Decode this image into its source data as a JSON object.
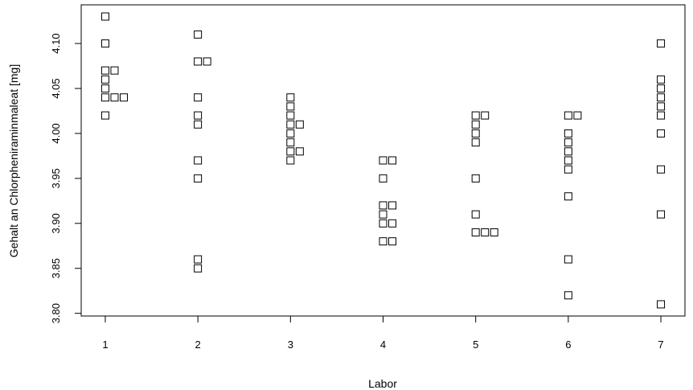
{
  "chart_data": {
    "type": "scatter",
    "title": "",
    "xlabel": "Labor",
    "ylabel": "Gehalt an Chlorpheniraminmaleat [mg]",
    "x_ticks": [
      1,
      2,
      3,
      4,
      5,
      6,
      7
    ],
    "y_ticks": [
      "3.80",
      "3.85",
      "3.90",
      "3.95",
      "4.00",
      "4.05",
      "4.10"
    ],
    "xlim": [
      0.74,
      7.26
    ],
    "ylim": [
      3.797,
      4.143
    ],
    "marker": "open-square",
    "grid": false,
    "legend": "none",
    "series": [
      {
        "points": [
          {
            "x": 1,
            "y": 4.13
          },
          {
            "x": 1,
            "y": 4.1
          },
          {
            "x": 1,
            "y": 4.07
          },
          {
            "x": 1.1,
            "y": 4.07
          },
          {
            "x": 1,
            "y": 4.06
          },
          {
            "x": 1,
            "y": 4.05
          },
          {
            "x": 1,
            "y": 4.04
          },
          {
            "x": 1.1,
            "y": 4.04
          },
          {
            "x": 1.2,
            "y": 4.04
          },
          {
            "x": 1,
            "y": 4.02
          },
          {
            "x": 2,
            "y": 4.11
          },
          {
            "x": 2,
            "y": 4.08
          },
          {
            "x": 2.1,
            "y": 4.08
          },
          {
            "x": 2,
            "y": 4.04
          },
          {
            "x": 2,
            "y": 4.02
          },
          {
            "x": 2,
            "y": 4.01
          },
          {
            "x": 2,
            "y": 3.97
          },
          {
            "x": 2,
            "y": 3.95
          },
          {
            "x": 2,
            "y": 3.86
          },
          {
            "x": 2,
            "y": 3.85
          },
          {
            "x": 3,
            "y": 4.04
          },
          {
            "x": 3,
            "y": 4.03
          },
          {
            "x": 3,
            "y": 4.02
          },
          {
            "x": 3,
            "y": 4.01
          },
          {
            "x": 3.1,
            "y": 4.01
          },
          {
            "x": 3,
            "y": 4.0
          },
          {
            "x": 3,
            "y": 3.99
          },
          {
            "x": 3,
            "y": 3.98
          },
          {
            "x": 3.1,
            "y": 3.98
          },
          {
            "x": 3,
            "y": 3.97
          },
          {
            "x": 4,
            "y": 3.97
          },
          {
            "x": 4.1,
            "y": 3.97
          },
          {
            "x": 4,
            "y": 3.95
          },
          {
            "x": 4,
            "y": 3.92
          },
          {
            "x": 4.1,
            "y": 3.92
          },
          {
            "x": 4,
            "y": 3.91
          },
          {
            "x": 4,
            "y": 3.9
          },
          {
            "x": 4.1,
            "y": 3.9
          },
          {
            "x": 4,
            "y": 3.88
          },
          {
            "x": 4.1,
            "y": 3.88
          },
          {
            "x": 5,
            "y": 4.02
          },
          {
            "x": 5.1,
            "y": 4.02
          },
          {
            "x": 5,
            "y": 4.01
          },
          {
            "x": 5,
            "y": 4.0
          },
          {
            "x": 5,
            "y": 3.99
          },
          {
            "x": 5,
            "y": 3.95
          },
          {
            "x": 5,
            "y": 3.91
          },
          {
            "x": 5,
            "y": 3.89
          },
          {
            "x": 5.1,
            "y": 3.89
          },
          {
            "x": 5.2,
            "y": 3.89
          },
          {
            "x": 6,
            "y": 4.02
          },
          {
            "x": 6.1,
            "y": 4.02
          },
          {
            "x": 6,
            "y": 4.0
          },
          {
            "x": 6,
            "y": 3.99
          },
          {
            "x": 6,
            "y": 3.98
          },
          {
            "x": 6,
            "y": 3.97
          },
          {
            "x": 6,
            "y": 3.96
          },
          {
            "x": 6,
            "y": 3.93
          },
          {
            "x": 6,
            "y": 3.86
          },
          {
            "x": 6,
            "y": 3.82
          },
          {
            "x": 7,
            "y": 4.1
          },
          {
            "x": 7,
            "y": 4.06
          },
          {
            "x": 7,
            "y": 4.05
          },
          {
            "x": 7,
            "y": 4.04
          },
          {
            "x": 7,
            "y": 4.03
          },
          {
            "x": 7,
            "y": 4.02
          },
          {
            "x": 7,
            "y": 4.0
          },
          {
            "x": 7,
            "y": 3.96
          },
          {
            "x": 7,
            "y": 3.91
          },
          {
            "x": 7,
            "y": 3.81
          }
        ]
      }
    ]
  }
}
